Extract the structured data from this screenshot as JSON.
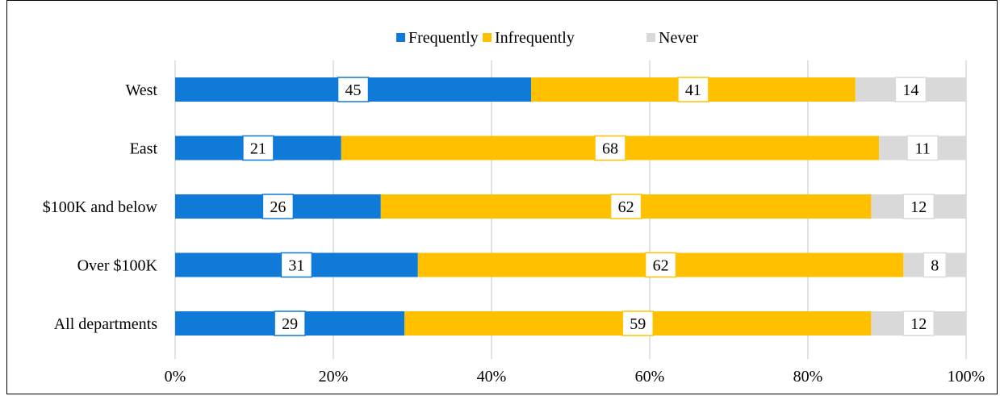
{
  "chart_data": {
    "type": "bar",
    "orientation": "horizontal",
    "stacked": "percent",
    "categories": [
      "West",
      "East",
      "$100K and below",
      "Over $100K",
      "All departments"
    ],
    "series": [
      {
        "name": "Frequently",
        "values": [
          45,
          21,
          26,
          31,
          29
        ],
        "labels": [
          "45",
          "21",
          "26",
          "31",
          "29"
        ],
        "color": "#0f7ad8"
      },
      {
        "name": "Infrequently",
        "values": [
          41,
          68,
          62,
          62,
          59
        ],
        "labels": [
          "41",
          "68",
          "62",
          "62",
          "59"
        ],
        "color": "#ffc000"
      },
      {
        "name": "Never",
        "values": [
          14,
          11,
          12,
          8,
          12
        ],
        "labels": [
          "14",
          "11",
          "12",
          "8",
          "12"
        ],
        "color": "#d9d9d9"
      }
    ],
    "x_ticks": [
      "0%",
      "20%",
      "40%",
      "60%",
      "80%",
      "100%"
    ],
    "xlim": [
      0,
      100
    ],
    "grid": true,
    "legend_position": "top"
  }
}
